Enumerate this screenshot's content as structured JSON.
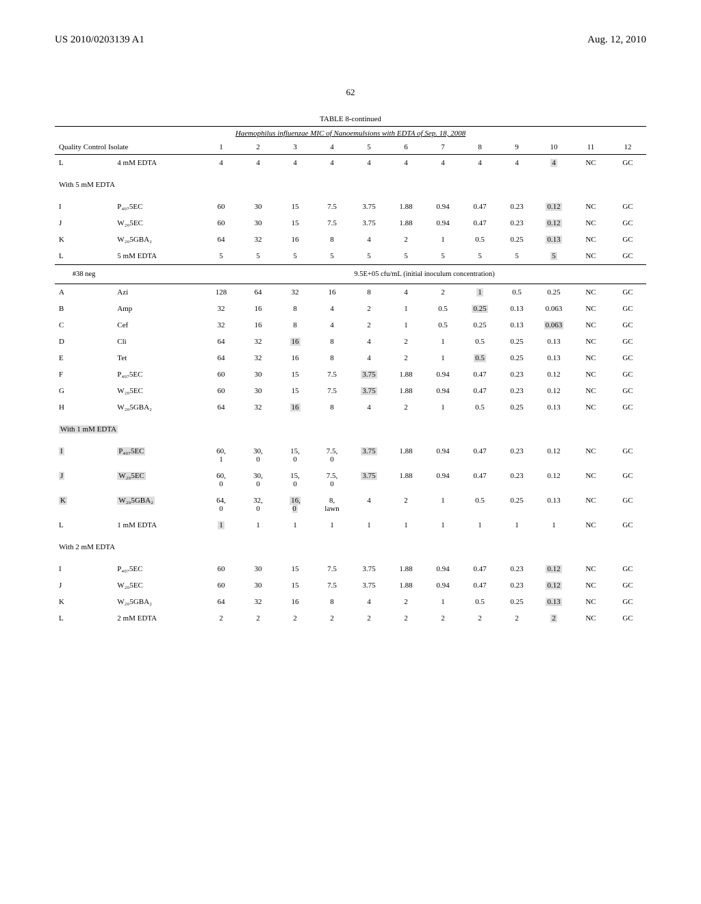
{
  "header": {
    "left": "US 2010/0203139 A1",
    "right": "Aug. 12, 2010"
  },
  "page_number": "62",
  "table": {
    "caption": "TABLE 8-continued",
    "subtitle": "Haemophilus influenzae MIC of Nanoemulsions with EDTA of Sep. 18, 2008",
    "header_label": "Quality Control Isolate",
    "col_nums": [
      "1",
      "2",
      "3",
      "4",
      "5",
      "6",
      "7",
      "8",
      "9",
      "10",
      "11",
      "12"
    ],
    "rows": [
      {
        "id": "L",
        "compound": "4 mM EDTA",
        "vals": [
          "4",
          "4",
          "4",
          "4",
          "4",
          "4",
          "4",
          "4",
          "4",
          "4",
          "NC",
          "GC"
        ],
        "hl": [
          9
        ]
      },
      {
        "section": "With 5 mM EDTA"
      },
      {
        "id": "I",
        "compound": "P₄₀₇5EC",
        "vals": [
          "60",
          "30",
          "15",
          "7.5",
          "3.75",
          "1.88",
          "0.94",
          "0.47",
          "0.23",
          "0.12",
          "NC",
          "GC"
        ],
        "hl": [
          9
        ]
      },
      {
        "id": "J",
        "compound": "W₂₀5EC",
        "vals": [
          "60",
          "30",
          "15",
          "7.5",
          "3.75",
          "1.88",
          "0.94",
          "0.47",
          "0.23",
          "0.12",
          "NC",
          "GC"
        ],
        "hl": [
          9
        ]
      },
      {
        "id": "K",
        "compound": "W₂₀5GBA₂",
        "vals": [
          "64",
          "32",
          "16",
          "8",
          "4",
          "2",
          "1",
          "0.5",
          "0.25",
          "0.13",
          "NC",
          "GC"
        ],
        "hl": [
          9
        ]
      },
      {
        "id": "L",
        "compound": "5 mM EDTA",
        "vals": [
          "5",
          "5",
          "5",
          "5",
          "5",
          "5",
          "5",
          "5",
          "5",
          "5",
          "NC",
          "GC"
        ],
        "hl": [
          9
        ]
      },
      {
        "inoculum": "#38 neg",
        "text": "9.5E+05 cfu/mL (initial inoculum concentration)"
      },
      {
        "id": "A",
        "compound": "Azi",
        "vals": [
          "128",
          "64",
          "32",
          "16",
          "8",
          "4",
          "2",
          "1",
          "0.5",
          "0.25",
          "NC",
          "GC"
        ],
        "hl": [
          7
        ]
      },
      {
        "id": "B",
        "compound": "Amp",
        "vals": [
          "32",
          "16",
          "8",
          "4",
          "2",
          "1",
          "0.5",
          "0.25",
          "0.13",
          "0.063",
          "NC",
          "GC"
        ],
        "hl": [
          7
        ]
      },
      {
        "id": "C",
        "compound": "Cef",
        "vals": [
          "32",
          "16",
          "8",
          "4",
          "2",
          "1",
          "0.5",
          "0.25",
          "0.13",
          "0.063",
          "NC",
          "GC"
        ],
        "hl": [
          9
        ]
      },
      {
        "id": "D",
        "compound": "Cli",
        "vals": [
          "64",
          "32",
          "16",
          "8",
          "4",
          "2",
          "1",
          "0.5",
          "0.25",
          "0.13",
          "NC",
          "GC"
        ],
        "hl": [
          2
        ]
      },
      {
        "id": "E",
        "compound": "Tet",
        "vals": [
          "64",
          "32",
          "16",
          "8",
          "4",
          "2",
          "1",
          "0.5",
          "0.25",
          "0.13",
          "NC",
          "GC"
        ],
        "hl": [
          7
        ]
      },
      {
        "id": "F",
        "compound": "P₄₀₇5EC",
        "vals": [
          "60",
          "30",
          "15",
          "7.5",
          "3.75",
          "1.88",
          "0.94",
          "0.47",
          "0.23",
          "0.12",
          "NC",
          "GC"
        ],
        "hl": [
          4
        ]
      },
      {
        "id": "G",
        "compound": "W₂₀5EC",
        "vals": [
          "60",
          "30",
          "15",
          "7.5",
          "3.75",
          "1.88",
          "0.94",
          "0.47",
          "0.23",
          "0.12",
          "NC",
          "GC"
        ],
        "hl": [
          4
        ]
      },
      {
        "id": "H",
        "compound": "W₂₀5GBA₂",
        "vals": [
          "64",
          "32",
          "16",
          "8",
          "4",
          "2",
          "1",
          "0.5",
          "0.25",
          "0.13",
          "NC",
          "GC"
        ],
        "hl": [
          2
        ]
      },
      {
        "section": "With 1 mM EDTA",
        "hl_section": true
      },
      {
        "id": "I",
        "compound": "P₄₀₇5EC",
        "vals": [
          "60, 1",
          "30, 0",
          "15, 0",
          "7.5, 0",
          "3.75",
          "1.88",
          "0.94",
          "0.47",
          "0.23",
          "0.12",
          "NC",
          "GC"
        ],
        "hl": [
          4
        ],
        "hl_id": true,
        "hl_compound": true
      },
      {
        "id": "J",
        "compound": "W₂₀5EC",
        "vals": [
          "60, 0",
          "30, 0",
          "15, 0",
          "7.5, 0",
          "3.75",
          "1.88",
          "0.94",
          "0.47",
          "0.23",
          "0.12",
          "NC",
          "GC"
        ],
        "hl": [
          4
        ],
        "hl_id": true,
        "hl_compound": true
      },
      {
        "id": "K",
        "compound": "W₂₀5GBA₂",
        "vals": [
          "64, 0",
          "32, 0",
          "16, 0",
          "8, lawn",
          "4",
          "2",
          "1",
          "0.5",
          "0.25",
          "0.13",
          "NC",
          "GC"
        ],
        "hl": [
          2
        ],
        "hl_id": true,
        "hl_compound": true
      },
      {
        "id": "L",
        "compound": "1 mM EDTA",
        "vals": [
          "1",
          "1",
          "1",
          "1",
          "1",
          "1",
          "1",
          "1",
          "1",
          "1",
          "NC",
          "GC"
        ],
        "hl": [
          0
        ]
      },
      {
        "section": "With 2 mM EDTA"
      },
      {
        "id": "I",
        "compound": "P₄₀₇5EC",
        "vals": [
          "60",
          "30",
          "15",
          "7.5",
          "3.75",
          "1.88",
          "0.94",
          "0.47",
          "0.23",
          "0.12",
          "NC",
          "GC"
        ],
        "hl": [
          9
        ]
      },
      {
        "id": "J",
        "compound": "W₂₀5EC",
        "vals": [
          "60",
          "30",
          "15",
          "7.5",
          "3.75",
          "1.88",
          "0.94",
          "0.47",
          "0.23",
          "0.12",
          "NC",
          "GC"
        ],
        "hl": [
          9
        ]
      },
      {
        "id": "K",
        "compound": "W₂₀5GBA₂",
        "vals": [
          "64",
          "32",
          "16",
          "8",
          "4",
          "2",
          "1",
          "0.5",
          "0.25",
          "0.13",
          "NC",
          "GC"
        ],
        "hl": [
          9
        ]
      },
      {
        "id": "L",
        "compound": "2 mM EDTA",
        "vals": [
          "2",
          "2",
          "2",
          "2",
          "2",
          "2",
          "2",
          "2",
          "2",
          "2",
          "NC",
          "GC"
        ],
        "hl": [
          9
        ]
      }
    ]
  }
}
